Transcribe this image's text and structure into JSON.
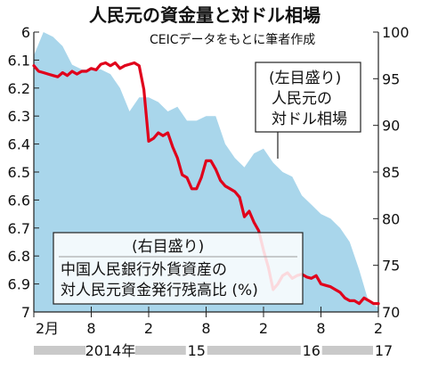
{
  "chart_data": {
    "type": "line",
    "title": "人民元の資金量と対ドル相場",
    "source": "CEICデータをもとに筆者作成",
    "x_tick_labels": [
      "2月",
      "8",
      "2",
      "8",
      "2",
      "8",
      "2"
    ],
    "year_labels": [
      "2014年",
      "15",
      "16",
      "17"
    ],
    "y_left": {
      "ticks": [
        "6",
        "6.1",
        "6.2",
        "6.3",
        "6.4",
        "6.5",
        "6.6",
        "6.7",
        "6.8",
        "6.9",
        "7"
      ],
      "ylim": [
        6,
        7
      ],
      "inverted": true
    },
    "y_right": {
      "ticks": [
        "100",
        "95",
        "90",
        "85",
        "80",
        "75",
        "70"
      ],
      "ylim": [
        70,
        100
      ]
    },
    "series": [
      {
        "name": "人民元の対ドル相場",
        "axis_label": "(左目盛り)",
        "axis": "left",
        "color": "#e0001b",
        "x": [
          0,
          0.5,
          1,
          1.5,
          2,
          2.5,
          3,
          3.5,
          4,
          4.5,
          5,
          5.5,
          6,
          6.5,
          7,
          7.5,
          8,
          8.5,
          9,
          9.5,
          10,
          10.5,
          11,
          11.5,
          12,
          12.5,
          13,
          13.5,
          14,
          14.5,
          15,
          15.5,
          16,
          16.5,
          17,
          17.5,
          18,
          18.5,
          19,
          19.5,
          20,
          20.5,
          21,
          21.5,
          22,
          22.5,
          23,
          23.5,
          24,
          24.5,
          25,
          25.5,
          26,
          26.5,
          27,
          27.5,
          28,
          28.5,
          29,
          29.5,
          30,
          30.5,
          31,
          31.5,
          32,
          32.5,
          33,
          33.5,
          34,
          34.5,
          35,
          35.5,
          36
        ],
        "values": [
          6.12,
          6.14,
          6.145,
          6.15,
          6.155,
          6.16,
          6.145,
          6.155,
          6.14,
          6.15,
          6.14,
          6.14,
          6.13,
          6.135,
          6.115,
          6.11,
          6.12,
          6.11,
          6.13,
          6.12,
          6.115,
          6.11,
          6.12,
          6.205,
          6.39,
          6.38,
          6.36,
          6.37,
          6.36,
          6.41,
          6.45,
          6.51,
          6.52,
          6.56,
          6.56,
          6.52,
          6.46,
          6.46,
          6.49,
          6.53,
          6.55,
          6.56,
          6.57,
          6.59,
          6.66,
          6.64,
          6.68,
          6.71,
          6.78,
          6.84,
          6.92,
          6.9,
          6.87,
          6.86,
          6.88,
          6.87,
          6.865,
          6.875,
          6.88,
          6.87,
          6.9,
          6.905,
          6.91,
          6.92,
          6.93,
          6.95,
          6.96,
          6.96,
          6.97,
          6.95,
          6.96,
          6.97,
          6.97
        ]
      },
      {
        "name": "中国人民銀行外貨資産の対人民元資金発行残高比 (%)",
        "axis_label": "(右目盛り)",
        "axis": "right",
        "color": "#a9d6eb",
        "x": [
          0,
          1,
          2,
          3,
          4,
          5,
          6,
          7,
          8,
          9,
          10,
          11,
          12,
          13,
          14,
          15,
          16,
          17,
          18,
          19,
          20,
          21,
          22,
          23,
          24,
          25,
          26,
          27,
          28,
          29,
          30,
          31,
          32,
          33,
          34,
          35,
          36
        ],
        "values": [
          97.5,
          100,
          99.5,
          98.5,
          96.5,
          96,
          96,
          96,
          95.5,
          94,
          91.5,
          93,
          93,
          92.5,
          91.5,
          92,
          90.5,
          90.5,
          91,
          91,
          88,
          86.5,
          85.5,
          87,
          87.5,
          86,
          85,
          84.5,
          82.5,
          81.5,
          80.5,
          80,
          79,
          77.5,
          74.5,
          71,
          70.5
        ]
      }
    ]
  }
}
